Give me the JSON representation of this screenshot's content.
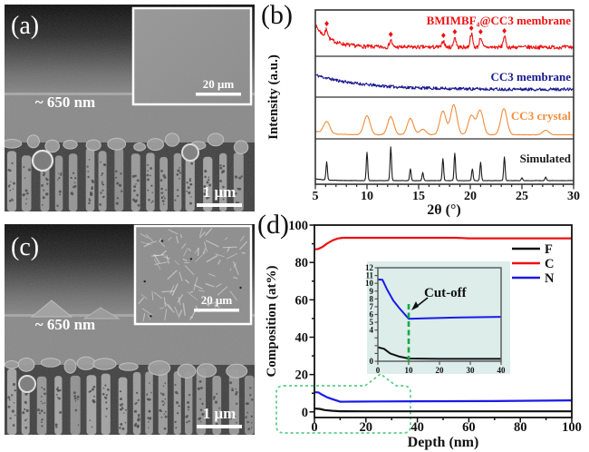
{
  "panels": {
    "a": {
      "label": "(a)",
      "thickness": "~ 650 nm",
      "scalebar": "1 μm",
      "inset_scalebar": "20 μm"
    },
    "b": {
      "label": "(b)"
    },
    "c": {
      "label": "(c)",
      "thickness": "~ 650 nm",
      "scalebar": "1 μm",
      "inset_scalebar": "20 μm"
    },
    "d": {
      "label": "(d)"
    }
  },
  "chart_data": [
    {
      "id": "xrd-patterns",
      "type": "line",
      "title": "",
      "xlabel": "2θ (°)",
      "ylabel": "Intensity (a.u.)",
      "xlim": [
        5,
        30
      ],
      "xticks": [
        5,
        10,
        15,
        20,
        25,
        30
      ],
      "grid": false,
      "legend_position": "labels-inside-right",
      "series": [
        {
          "name": "BMIMBF₄@CC3 membrane",
          "color": "#ed1111",
          "style": "noisy decay with small peaks",
          "marker": "diamond",
          "marker_x": [
            6.1,
            12.3,
            17.4,
            18.5,
            20.1,
            21.0,
            23.3
          ],
          "profile": {
            "seed": 7,
            "base": 2,
            "decay_a": 24,
            "decay_t": 1.4,
            "noise": 2.2,
            "peak_w": 0.12
          },
          "peaks": [
            {
              "x": 6.1,
              "h": 9
            },
            {
              "x": 12.3,
              "h": 8
            },
            {
              "x": 17.4,
              "h": 7
            },
            {
              "x": 18.5,
              "h": 11
            },
            {
              "x": 20.1,
              "h": 15
            },
            {
              "x": 21.0,
              "h": 11
            },
            {
              "x": 23.3,
              "h": 12
            }
          ]
        },
        {
          "name": "CC3 membrane",
          "color": "#181890",
          "style": "noisy decay, no peaks",
          "profile": {
            "seed": 11,
            "base": 1.5,
            "decay_a": 16,
            "decay_t": 4.5,
            "noise": 1.7,
            "peak_w": 0.2
          },
          "peaks": []
        },
        {
          "name": "CC3 crystal",
          "color": "#f28c3a",
          "style": "broad peaks",
          "profile": {
            "seed": 3,
            "base": 1.5,
            "decay_a": 4,
            "decay_t": 1.2,
            "noise": 0.3,
            "peak_w": 0.3
          },
          "peaks": [
            {
              "x": 6.1,
              "h": 13
            },
            {
              "x": 10.0,
              "h": 21
            },
            {
              "x": 12.3,
              "h": 20
            },
            {
              "x": 14.2,
              "h": 18
            },
            {
              "x": 15.4,
              "h": 6
            },
            {
              "x": 17.35,
              "h": 26
            },
            {
              "x": 18.4,
              "h": 33
            },
            {
              "x": 20.1,
              "h": 21
            },
            {
              "x": 20.95,
              "h": 27
            },
            {
              "x": 23.25,
              "h": 29
            },
            {
              "x": 27.3,
              "h": 5
            }
          ]
        },
        {
          "name": "Simulated",
          "color": "#1a1a1a",
          "style": "sharp peaks",
          "profile": {
            "seed": 5,
            "base": 1,
            "decay_a": 2,
            "decay_t": 1.0,
            "noise": 0.25,
            "peak_w": 0.07
          },
          "peaks": [
            {
              "x": 6.1,
              "h": 20
            },
            {
              "x": 10.0,
              "h": 31
            },
            {
              "x": 12.3,
              "h": 37
            },
            {
              "x": 14.2,
              "h": 13
            },
            {
              "x": 15.4,
              "h": 9
            },
            {
              "x": 17.35,
              "h": 24
            },
            {
              "x": 18.5,
              "h": 30
            },
            {
              "x": 20.2,
              "h": 13
            },
            {
              "x": 21.0,
              "h": 20
            },
            {
              "x": 23.3,
              "h": 26
            },
            {
              "x": 25.0,
              "h": 3
            },
            {
              "x": 27.3,
              "h": 4
            }
          ]
        }
      ]
    },
    {
      "id": "xps-depth-profile",
      "type": "line",
      "title": "",
      "xlabel": "Depth (nm)",
      "ylabel": "Composition (at%)",
      "unit": "at%",
      "xlim": [
        0,
        100
      ],
      "ylim": [
        0,
        100
      ],
      "xticks": [
        0,
        20,
        40,
        60,
        80,
        100
      ],
      "yticks": [
        0,
        20,
        40,
        60,
        80,
        100
      ],
      "grid": false,
      "legend": [
        "F",
        "C",
        "N"
      ],
      "legend_position": "top-right-inside",
      "series": [
        {
          "name": "F",
          "color": "#111111",
          "points": [
            [
              0,
              1.8
            ],
            [
              2,
              1.6
            ],
            [
              4,
              1.0
            ],
            [
              7,
              0.6
            ],
            [
              10,
              0.35
            ],
            [
              20,
              0.3
            ],
            [
              40,
              0.3
            ],
            [
              100,
              0.3
            ]
          ]
        },
        {
          "name": "C",
          "color": "#ee1111",
          "points": [
            [
              0,
              87
            ],
            [
              1.5,
              87.2
            ],
            [
              3,
              88.2
            ],
            [
              5,
              90.2
            ],
            [
              7,
              91.8
            ],
            [
              9,
              92.8
            ],
            [
              11,
              93.2
            ],
            [
              55,
              93.2
            ],
            [
              60,
              92.9
            ],
            [
              100,
              92.9
            ]
          ]
        },
        {
          "name": "N",
          "color": "#1a1ae8",
          "points": [
            [
              0,
              10.5
            ],
            [
              1.5,
              10.45
            ],
            [
              3,
              9.2
            ],
            [
              5,
              7.8
            ],
            [
              7,
              6.8
            ],
            [
              10,
              5.45
            ],
            [
              15,
              5.5
            ],
            [
              25,
              5.6
            ],
            [
              40,
              5.7
            ],
            [
              70,
              5.8
            ],
            [
              100,
              6.2
            ]
          ]
        }
      ],
      "zoom_box": {
        "color": "#57cd86",
        "x_range": [
          0,
          35
        ],
        "y_range": [
          -8,
          13
        ]
      },
      "inset": {
        "bg": "#dcedea",
        "xlim": [
          0,
          40
        ],
        "ylim": [
          0,
          12
        ],
        "xticks": [
          0,
          10,
          20,
          30,
          40
        ],
        "yticks_labeled": [
          0,
          4,
          5,
          6,
          7,
          8,
          9,
          10,
          11,
          12
        ],
        "yticks_minor": [
          1,
          2,
          3
        ],
        "cutoff_x": 10,
        "cutoff_label": "Cut-off",
        "cutoff_color": "#17a845",
        "series": [
          {
            "name": "N",
            "color": "#1a1ae8",
            "points": [
              [
                0,
                10.5
              ],
              [
                1.5,
                10.45
              ],
              [
                3,
                9.2
              ],
              [
                5,
                7.8
              ],
              [
                7,
                6.8
              ],
              [
                10,
                5.45
              ],
              [
                15,
                5.5
              ],
              [
                25,
                5.6
              ],
              [
                40,
                5.7
              ]
            ]
          },
          {
            "name": "F",
            "color": "#111111",
            "points": [
              [
                0,
                1.8
              ],
              [
                2,
                1.6
              ],
              [
                4,
                1.0
              ],
              [
                7,
                0.6
              ],
              [
                10,
                0.35
              ],
              [
                20,
                0.3
              ],
              [
                40,
                0.3
              ]
            ]
          }
        ]
      }
    }
  ]
}
